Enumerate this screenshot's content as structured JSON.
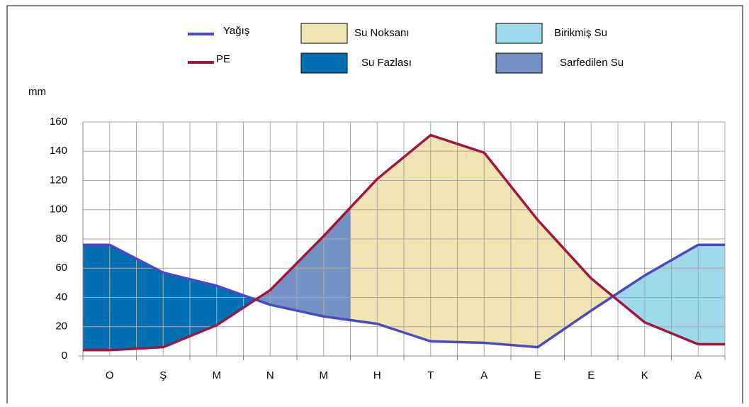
{
  "chart_data": {
    "type": "line",
    "y_label": "mm",
    "categories": [
      "O",
      "Ş",
      "M",
      "N",
      "M",
      "H",
      "T",
      "A",
      "E",
      "E",
      "K",
      "A"
    ],
    "series": [
      {
        "name": "Yağış",
        "color": "#4848c8",
        "values": [
          76,
          57,
          48,
          35,
          27,
          22,
          10,
          9,
          6,
          31,
          55,
          76
        ]
      },
      {
        "name": "PE",
        "color": "#a3163c",
        "values": [
          4,
          6,
          21,
          45,
          82,
          121,
          151,
          139,
          93,
          53,
          23,
          8
        ]
      }
    ],
    "areas": [
      {
        "name": "Su Noksanı",
        "color": "#f1e4b3"
      },
      {
        "name": "Su Fazlası",
        "color": "#0070b3"
      },
      {
        "name": "Birikmiş Su",
        "color": "#9ed9ec"
      },
      {
        "name": "Sarfedilen Su",
        "color": "#7192c2"
      }
    ],
    "ylim": [
      0,
      160
    ],
    "yticks": [
      0,
      20,
      40,
      60,
      80,
      100,
      120,
      140,
      160
    ],
    "grid": true
  }
}
